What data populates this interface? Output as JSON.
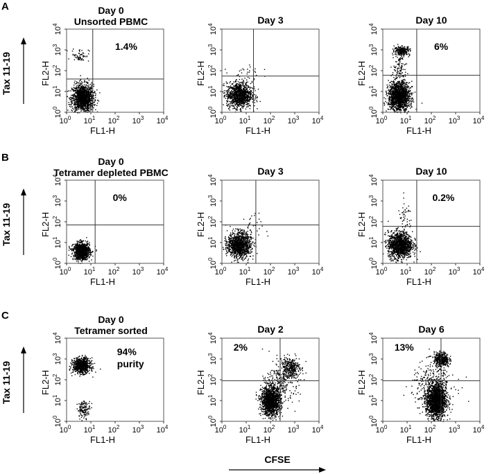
{
  "figure": {
    "x_axis_caption": "CFSE",
    "y_axis_caption": "Tax 11-19"
  },
  "chart_data": [
    {
      "type": "scatter",
      "row": "A",
      "title_line1": "Day 0",
      "title_line2": "Unsorted PBMC",
      "xlabel": "FL1-H",
      "ylabel": "FL2-H",
      "xscale": "log",
      "yscale": "log",
      "xlim": [
        1,
        10000
      ],
      "ylim": [
        1,
        10000
      ],
      "xticks": [
        "10^0",
        "10^1",
        "10^2",
        "10^3",
        "10^4"
      ],
      "yticks": [
        "10^0",
        "10^1",
        "10^2",
        "10^3",
        "10^4"
      ],
      "gate_x": 12,
      "gate_y": 40,
      "annotations": [
        {
          "text": "1.4%",
          "x": 100,
          "y": 1000
        }
      ],
      "clusters": [
        {
          "n": 1400,
          "cx": 4.5,
          "cy": 5,
          "sx": 0.22,
          "sy": 0.33
        },
        {
          "n": 60,
          "cx": 3.5,
          "cy": 600,
          "sx": 0.18,
          "sy": 0.16
        }
      ]
    },
    {
      "type": "scatter",
      "row": "A",
      "title_line1": "Day 3",
      "title_line2": "",
      "xlabel": "FL1-H",
      "ylabel": "FL2-H",
      "xscale": "log",
      "yscale": "log",
      "xlim": [
        1,
        10000
      ],
      "ylim": [
        1,
        10000
      ],
      "xticks": [
        "10^0",
        "10^1",
        "10^2",
        "10^3",
        "10^4"
      ],
      "yticks": [
        "10^0",
        "10^1",
        "10^2",
        "10^3",
        "10^4"
      ],
      "gate_x": 20,
      "gate_y": 55,
      "annotations": [],
      "clusters": [
        {
          "n": 1100,
          "cx": 5,
          "cy": 7,
          "sx": 0.26,
          "sy": 0.3
        },
        {
          "n": 40,
          "cx": 10,
          "cy": 60,
          "sx": 0.3,
          "sy": 0.35
        }
      ]
    },
    {
      "type": "scatter",
      "row": "A",
      "title_line1": "Day 10",
      "title_line2": "",
      "xlabel": "FL1-H",
      "ylabel": "FL2-H",
      "xscale": "log",
      "yscale": "log",
      "xlim": [
        1,
        10000
      ],
      "ylim": [
        1,
        10000
      ],
      "xticks": [
        "10^0",
        "10^1",
        "10^2",
        "10^3",
        "10^4"
      ],
      "yticks": [
        "10^0",
        "10^1",
        "10^2",
        "10^3",
        "10^4"
      ],
      "gate_x": 25,
      "gate_y": 60,
      "annotations": [
        {
          "text": "6%",
          "x": 130,
          "y": 1000
        }
      ],
      "clusters": [
        {
          "n": 1600,
          "cx": 4.5,
          "cy": 6,
          "sx": 0.22,
          "sy": 0.35
        },
        {
          "n": 260,
          "cx": 6,
          "cy": 950,
          "sx": 0.16,
          "sy": 0.11
        },
        {
          "n": 90,
          "cx": 5,
          "cy": 150,
          "sx": 0.14,
          "sy": 0.3
        }
      ]
    },
    {
      "type": "scatter",
      "row": "B",
      "title_line1": "Day 0",
      "title_line2": "Tetramer depleted PBMC",
      "xlabel": "FL1-H",
      "ylabel": "FL2-H",
      "xscale": "log",
      "yscale": "log",
      "xlim": [
        1,
        10000
      ],
      "ylim": [
        1,
        10000
      ],
      "xticks": [
        "10^0",
        "10^1",
        "10^2",
        "10^3",
        "10^4"
      ],
      "yticks": [
        "10^0",
        "10^1",
        "10^2",
        "10^3",
        "10^4"
      ],
      "gate_x": 15,
      "gate_y": 70,
      "annotations": [
        {
          "text": "0%",
          "x": 80,
          "y": 1000
        }
      ],
      "clusters": [
        {
          "n": 1000,
          "cx": 4,
          "cy": 4,
          "sx": 0.17,
          "sy": 0.2
        }
      ]
    },
    {
      "type": "scatter",
      "row": "B",
      "title_line1": "Day 3",
      "title_line2": "",
      "xlabel": "FL1-H",
      "ylabel": "FL2-H",
      "xscale": "log",
      "yscale": "log",
      "xlim": [
        1,
        10000
      ],
      "ylim": [
        1,
        10000
      ],
      "xticks": [
        "10^0",
        "10^1",
        "10^2",
        "10^3",
        "10^4"
      ],
      "yticks": [
        "10^0",
        "10^1",
        "10^2",
        "10^3",
        "10^4"
      ],
      "gate_x": 25,
      "gate_y": 70,
      "annotations": [],
      "clusters": [
        {
          "n": 1200,
          "cx": 5,
          "cy": 8,
          "sx": 0.24,
          "sy": 0.3
        },
        {
          "n": 30,
          "cx": 15,
          "cy": 50,
          "sx": 0.25,
          "sy": 0.35
        }
      ]
    },
    {
      "type": "scatter",
      "row": "B",
      "title_line1": "Day 10",
      "title_line2": "",
      "xlabel": "FL1-H",
      "ylabel": "FL2-H",
      "xscale": "log",
      "yscale": "log",
      "xlim": [
        1,
        10000
      ],
      "ylim": [
        1,
        10000
      ],
      "xticks": [
        "10^0",
        "10^1",
        "10^2",
        "10^3",
        "10^4"
      ],
      "yticks": [
        "10^0",
        "10^1",
        "10^2",
        "10^3",
        "10^4"
      ],
      "gate_x": 25,
      "gate_y": 60,
      "annotations": [
        {
          "text": "0.2%",
          "x": 110,
          "y": 1000
        }
      ],
      "clusters": [
        {
          "n": 1300,
          "cx": 5,
          "cy": 8,
          "sx": 0.25,
          "sy": 0.32
        },
        {
          "n": 40,
          "cx": 8,
          "cy": 180,
          "sx": 0.15,
          "sy": 0.35
        }
      ]
    },
    {
      "type": "scatter",
      "row": "C",
      "title_line1": "Day 0",
      "title_line2": "Tetramer sorted",
      "xlabel": "FL1-H",
      "ylabel": "FL2-H",
      "xscale": "log",
      "yscale": "log",
      "xlim": [
        1,
        10000
      ],
      "ylim": [
        1,
        10000
      ],
      "xticks": [
        "10^0",
        "10^1",
        "10^2",
        "10^3",
        "10^4"
      ],
      "yticks": [
        "10^0",
        "10^1",
        "10^2",
        "10^3",
        "10^4"
      ],
      "gate_x": null,
      "gate_y": null,
      "annotations": [
        {
          "text": "94%",
          "x": 120,
          "y": 1500
        },
        {
          "text": "purity",
          "x": 120,
          "y": 400
        }
      ],
      "clusters": [
        {
          "n": 800,
          "cx": 4,
          "cy": 500,
          "sx": 0.18,
          "sy": 0.18
        },
        {
          "n": 130,
          "cx": 5,
          "cy": 4,
          "sx": 0.13,
          "sy": 0.2
        }
      ]
    },
    {
      "type": "scatter",
      "row": "C",
      "title_line1": "Day 2",
      "title_line2": "",
      "xlabel": "FL1-H",
      "ylabel": "FL2-H",
      "xscale": "log",
      "yscale": "log",
      "xlim": [
        1,
        10000
      ],
      "ylim": [
        1,
        10000
      ],
      "xticks": [
        "10^0",
        "10^1",
        "10^2",
        "10^3",
        "10^4"
      ],
      "yticks": [
        "10^0",
        "10^1",
        "10^2",
        "10^3",
        "10^4"
      ],
      "gate_x": 250,
      "gate_y": 90,
      "annotations": [
        {
          "text": "2%",
          "x": 3,
          "y": 2500
        }
      ],
      "clusters": [
        {
          "n": 1400,
          "cx": 100,
          "cy": 10,
          "sx": 0.2,
          "sy": 0.35
        },
        {
          "n": 320,
          "cx": 600,
          "cy": 400,
          "sx": 0.2,
          "sy": 0.25
        },
        {
          "n": 250,
          "cx": 300,
          "cy": 80,
          "sx": 0.35,
          "sy": 0.5
        }
      ]
    },
    {
      "type": "scatter",
      "row": "C",
      "title_line1": "Day 6",
      "title_line2": "",
      "xlabel": "FL1-H",
      "ylabel": "FL2-H",
      "xscale": "log",
      "yscale": "log",
      "xlim": [
        1,
        10000
      ],
      "ylim": [
        1,
        10000
      ],
      "xticks": [
        "10^0",
        "10^1",
        "10^2",
        "10^3",
        "10^4"
      ],
      "yticks": [
        "10^0",
        "10^1",
        "10^2",
        "10^3",
        "10^4"
      ],
      "gate_x": 250,
      "gate_y": 90,
      "annotations": [
        {
          "text": "13%",
          "x": 3,
          "y": 2500
        }
      ],
      "clusters": [
        {
          "n": 1800,
          "cx": 150,
          "cy": 10,
          "sx": 0.2,
          "sy": 0.4
        },
        {
          "n": 400,
          "cx": 250,
          "cy": 1000,
          "sx": 0.15,
          "sy": 0.17
        },
        {
          "n": 300,
          "cx": 120,
          "cy": 70,
          "sx": 0.45,
          "sy": 0.5
        }
      ]
    }
  ]
}
